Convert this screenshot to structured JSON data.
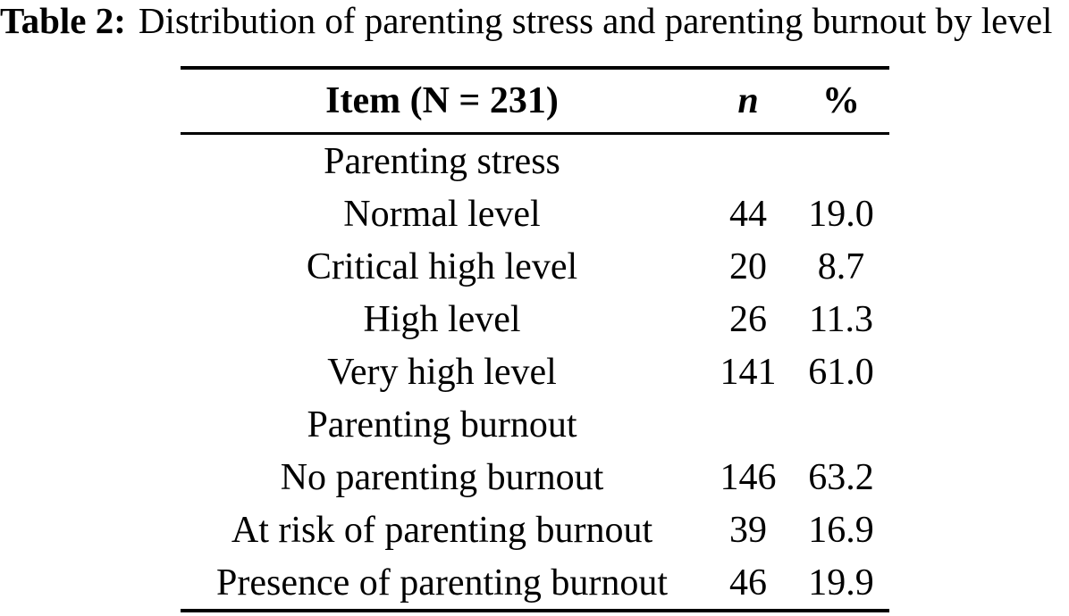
{
  "caption": {
    "label": "Table 2:",
    "text": "Distribution of parenting stress and parenting burnout by level"
  },
  "table": {
    "columns": [
      "Item (N = 231)",
      "n",
      "%"
    ],
    "rows": [
      {
        "item": "Parenting stress",
        "n": "",
        "pct": ""
      },
      {
        "item": "Normal level",
        "n": "44",
        "pct": "19.0"
      },
      {
        "item": "Critical high level",
        "n": "20",
        "pct": "8.7"
      },
      {
        "item": "High level",
        "n": "26",
        "pct": "11.3"
      },
      {
        "item": "Very high level",
        "n": "141",
        "pct": "61.0"
      },
      {
        "item": "Parenting burnout",
        "n": "",
        "pct": ""
      },
      {
        "item": "No parenting burnout",
        "n": "146",
        "pct": "63.2"
      },
      {
        "item": "At risk of parenting burnout",
        "n": "39",
        "pct": "16.9"
      },
      {
        "item": "Presence of parenting burnout",
        "n": "46",
        "pct": "19.9"
      }
    ]
  },
  "colors": {
    "text": "#000000",
    "background": "#ffffff"
  }
}
